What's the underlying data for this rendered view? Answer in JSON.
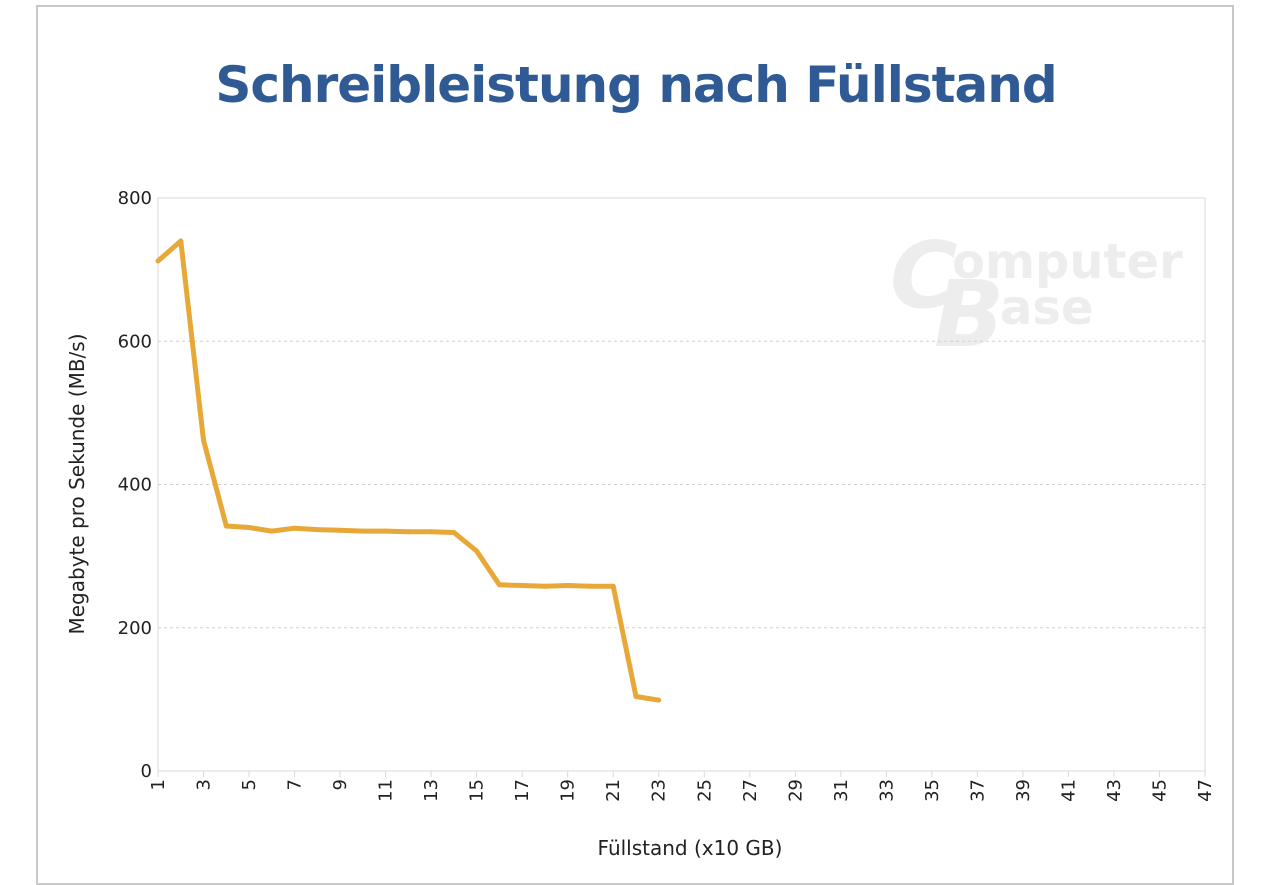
{
  "chart_data": {
    "type": "line",
    "title": "Schreibleistung nach Füllstand",
    "xlabel": "Füllstand (x10 GB)",
    "ylabel": "Megabyte pro Sekunde (MB/s)",
    "xlim": [
      1,
      47
    ],
    "ylim": [
      0,
      800
    ],
    "yticks": [
      0,
      200,
      400,
      600,
      800
    ],
    "xticks": [
      1,
      3,
      5,
      7,
      9,
      11,
      13,
      15,
      17,
      19,
      21,
      23,
      25,
      27,
      29,
      31,
      33,
      35,
      37,
      39,
      41,
      43,
      45,
      47
    ],
    "grid": true,
    "line_color": "#e8a838",
    "series": [
      {
        "x": [
          1,
          2,
          3,
          4,
          5,
          6,
          7,
          8,
          9,
          10,
          11,
          12,
          13,
          14,
          15,
          16,
          17,
          18,
          19,
          20,
          21,
          22,
          23
        ],
        "values": [
          712,
          740,
          462,
          342,
          340,
          335,
          339,
          337,
          336,
          335,
          335,
          334,
          334,
          333,
          307,
          260,
          259,
          258,
          259,
          258,
          258,
          104,
          99
        ]
      }
    ]
  },
  "watermark": {
    "line1_initial": "C",
    "line1_rest": "omputer",
    "line2_initial": "B",
    "line2_rest": "ase"
  }
}
